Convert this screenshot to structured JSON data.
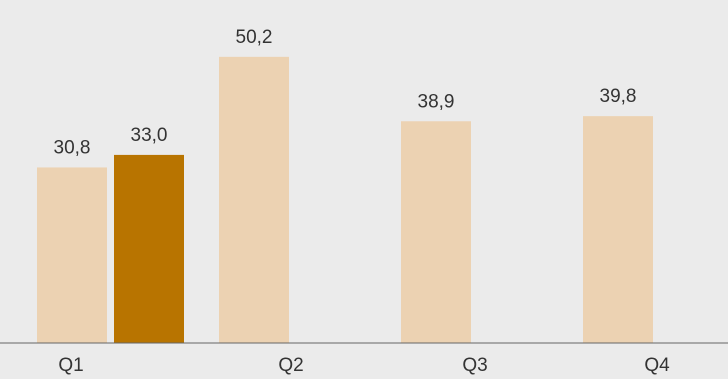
{
  "chart_data": {
    "type": "bar",
    "categories": [
      "Q1",
      "Q2",
      "Q3",
      "Q4"
    ],
    "series": [
      {
        "values": [
          30.8,
          50.2,
          38.9,
          39.8
        ],
        "color": "#ecd2b2"
      },
      {
        "values": [
          33.0,
          null,
          null,
          null
        ],
        "color": "#b87400"
      }
    ],
    "data_labels": [
      [
        "30,8",
        "50,2",
        "38,9",
        "39,8"
      ],
      [
        "33,0",
        "",
        "",
        ""
      ]
    ],
    "title": "",
    "xlabel": "",
    "ylabel": "",
    "ylim": [
      0,
      60
    ],
    "grid": false,
    "legend": "none",
    "axis_color": "#666666",
    "background": "#ebebeb"
  }
}
